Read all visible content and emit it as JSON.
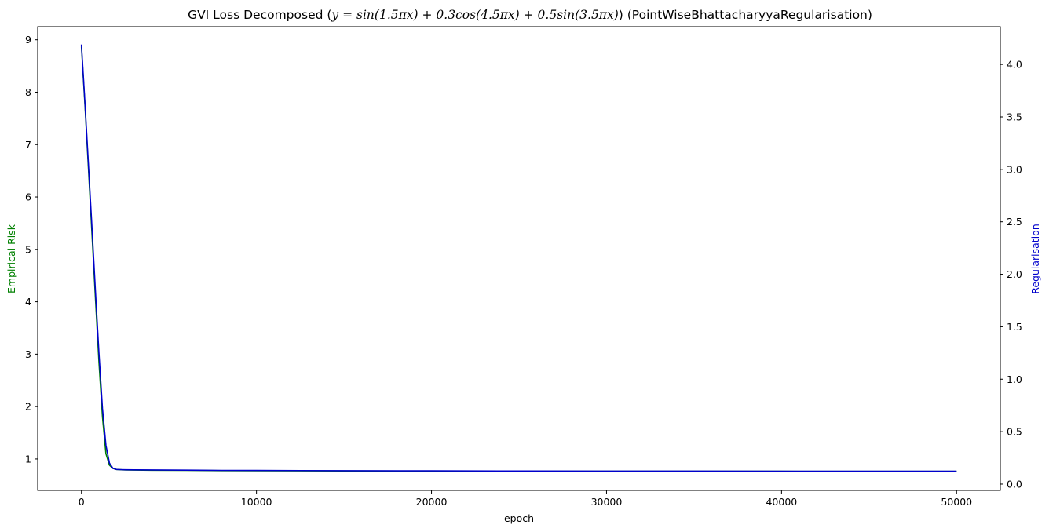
{
  "chart_data": {
    "type": "line",
    "title": "GVI Loss Decomposed (y = sin(1.5πx) + 0.3cos(4.5πx) + 0.5sin(3.5πx)) (PointWiseBhattacharyyaRegularisation)",
    "title_parts": {
      "prefix": "GVI Loss Decomposed (",
      "formula": "y = sin(1.5πx) + 0.3cos(4.5πx) + 0.5sin(3.5πx)",
      "suffix": ") (PointWiseBhattacharyyaRegularisation)"
    },
    "xlabel": "epoch",
    "ylabel_left": "Empirical Risk",
    "ylabel_right": "Regularisation",
    "xlim": [
      -2500,
      52500
    ],
    "ylim_left": [
      0.4,
      9.25
    ],
    "ylim_right": [
      -0.06,
      4.36
    ],
    "xticks": [
      0,
      10000,
      20000,
      30000,
      40000,
      50000
    ],
    "yticks_left": [
      1,
      2,
      3,
      4,
      5,
      6,
      7,
      8,
      9
    ],
    "yticks_right": [
      "0.0",
      "0.5",
      "1.0",
      "1.5",
      "2.0",
      "2.5",
      "3.0",
      "3.5",
      "4.0"
    ],
    "grid": false,
    "series": [
      {
        "name": "Empirical Risk",
        "axis": "left",
        "color": "#008000",
        "x": [
          0,
          200,
          400,
          600,
          800,
          1000,
          1200,
          1400,
          1600,
          1800,
          2000,
          2200,
          2500,
          3000,
          4000,
          6000,
          8000,
          10000,
          15000,
          20000,
          25000,
          30000,
          35000,
          40000,
          45000,
          50000
        ],
        "values": [
          8.87,
          7.75,
          6.55,
          5.3,
          4.05,
          2.85,
          1.8,
          1.1,
          0.88,
          0.82,
          0.8,
          0.795,
          0.79,
          0.788,
          0.785,
          0.782,
          0.778,
          0.775,
          0.772,
          0.77,
          0.768,
          0.767,
          0.766,
          0.765,
          0.764,
          0.764
        ]
      },
      {
        "name": "Regularisation",
        "axis": "right",
        "color": "#0000cc",
        "x": [
          0,
          200,
          400,
          600,
          800,
          1000,
          1200,
          1400,
          1600,
          1800,
          2000,
          2200,
          2500,
          3000,
          4000,
          6000,
          8000,
          10000,
          15000,
          20000,
          25000,
          30000,
          35000,
          40000,
          45000,
          50000
        ],
        "values": [
          4.19,
          3.63,
          3.05,
          2.45,
          1.83,
          1.25,
          0.72,
          0.37,
          0.2,
          0.15,
          0.14,
          0.138,
          0.137,
          0.136,
          0.135,
          0.133,
          0.131,
          0.13,
          0.128,
          0.126,
          0.125,
          0.124,
          0.124,
          0.123,
          0.123,
          0.123
        ]
      }
    ]
  }
}
